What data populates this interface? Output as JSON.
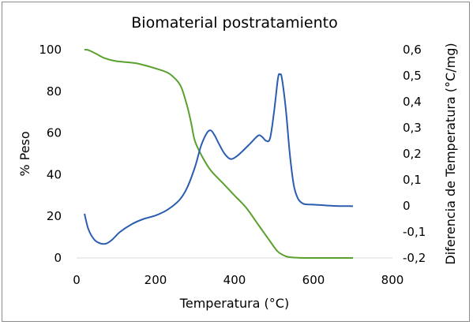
{
  "chart_data": {
    "type": "line",
    "title": "Biomaterial postratamiento",
    "xlabel": "Temperatura (°C)",
    "ylabel": "% Peso",
    "y2label": "Diferencia de Temperatura (°C/mg)",
    "xlim": [
      0,
      800
    ],
    "ylim": [
      0,
      100
    ],
    "y2lim": [
      -0.2,
      0.6
    ],
    "x_ticks": [
      "0",
      "200",
      "400",
      "600",
      "800"
    ],
    "y_ticks": [
      "0",
      "20",
      "40",
      "60",
      "80",
      "100"
    ],
    "y2_ticks": [
      "-0,2",
      "-0,1",
      "0",
      "0,1",
      "0,2",
      "0,3",
      "0,4",
      "0,5",
      "0,6"
    ],
    "grid": false,
    "legend": "none",
    "series": [
      {
        "axis": "left",
        "color": "#5aa02c",
        "x": [
          20,
          30,
          50,
          70,
          100,
          150,
          200,
          230,
          250,
          265,
          280,
          290,
          300,
          320,
          340,
          370,
          400,
          430,
          460,
          490,
          510,
          530,
          545,
          560,
          575,
          600,
          650,
          700
        ],
        "y": [
          100,
          99.8,
          98,
          96,
          94.5,
          93.5,
          91,
          89,
          86,
          82,
          73,
          65,
          56,
          48,
          42,
          36,
          30,
          24,
          16,
          8,
          3,
          0.8,
          0.3,
          0.1,
          0,
          0,
          0,
          0
        ]
      },
      {
        "axis": "right",
        "color": "#2a5db0",
        "x": [
          20,
          30,
          45,
          60,
          75,
          90,
          110,
          140,
          170,
          200,
          230,
          260,
          280,
          300,
          315,
          330,
          340,
          350,
          360,
          375,
          390,
          405,
          420,
          440,
          460,
          470,
          480,
          490,
          500,
          510,
          515,
          520,
          530,
          540,
          550,
          560,
          570,
          580,
          600,
          650,
          700
        ],
        "y": [
          -0.03,
          -0.09,
          -0.13,
          -0.144,
          -0.145,
          -0.13,
          -0.1,
          -0.07,
          -0.05,
          -0.037,
          -0.015,
          0.022,
          0.07,
          0.15,
          0.23,
          0.28,
          0.29,
          0.27,
          0.24,
          0.2,
          0.18,
          0.19,
          0.21,
          0.24,
          0.27,
          0.265,
          0.25,
          0.26,
          0.36,
          0.49,
          0.505,
          0.49,
          0.37,
          0.2,
          0.08,
          0.03,
          0.012,
          0.006,
          0.005,
          0.0,
          -0.001
        ]
      }
    ]
  }
}
